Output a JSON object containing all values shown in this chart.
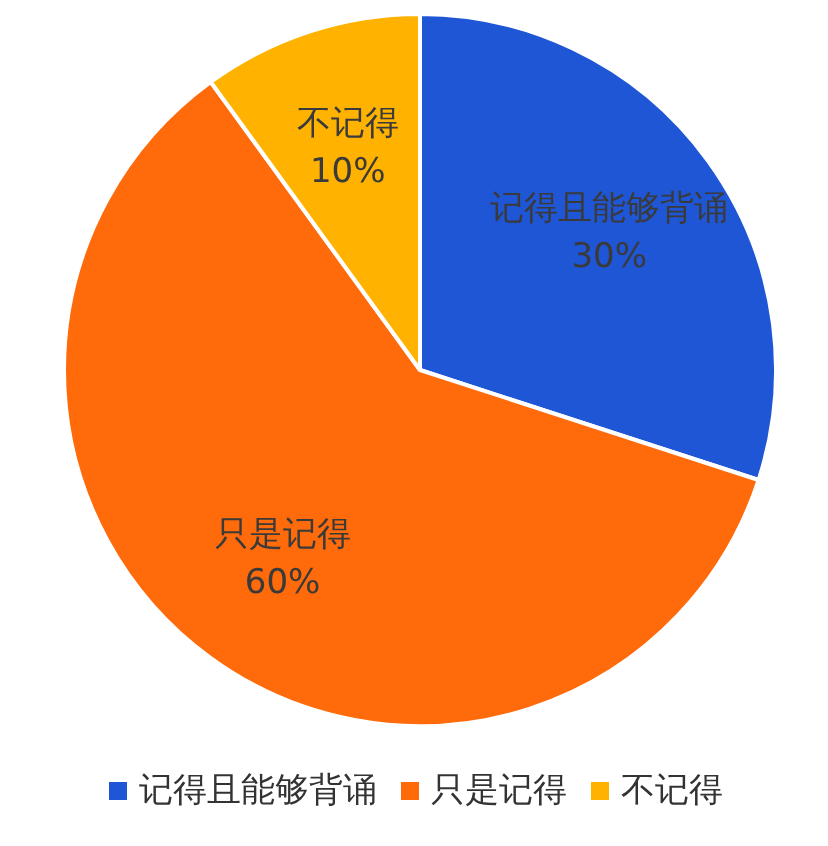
{
  "chart_data": {
    "type": "pie",
    "categories": [
      "记得且能够背诵",
      "只是记得",
      "不记得"
    ],
    "values": [
      30,
      60,
      10
    ],
    "value_labels": [
      "30%",
      "60%",
      "10%"
    ],
    "colors": [
      "#1f56d6",
      "#ff6a0a",
      "#ffb300"
    ],
    "legend": "bottom"
  }
}
